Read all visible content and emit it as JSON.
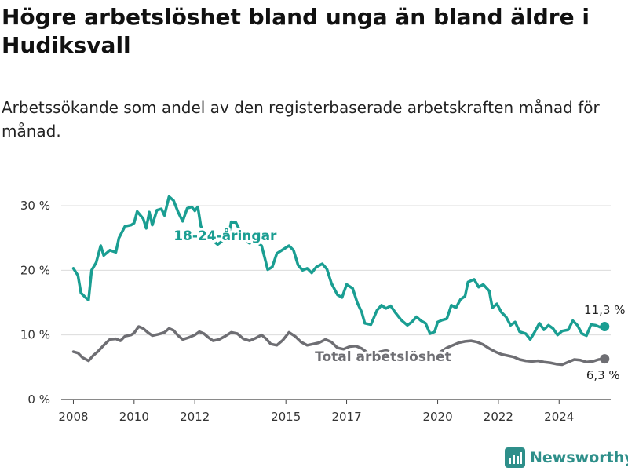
{
  "header": {
    "title": "Högre arbetslöshet bland unga än bland äldre i Hudiksvall",
    "subtitle": "Arbetssökande som andel av den registerbaserade arbetskraften månad för månad."
  },
  "brand": {
    "name": "Newsworthy",
    "color": "#2e8f8a",
    "icon": "bar-chart-logo-icon"
  },
  "chart_data": {
    "type": "line",
    "title": "Högre arbetslöshet bland unga än bland äldre i Hudiksvall",
    "subtitle": "Arbetssökande som andel av den registerbaserade arbetskraften månad för månad.",
    "x_range": [
      2007.6,
      2025.7
    ],
    "ylim": [
      0,
      30
    ],
    "y_ticks": [
      0,
      10,
      20,
      30
    ],
    "y_tick_labels": [
      "0 %",
      "10 %",
      "20 %",
      "30 %"
    ],
    "x_ticks": [
      2008,
      2010,
      2012,
      2015,
      2017,
      2020,
      2022,
      2024
    ],
    "x_tick_labels": [
      "2008",
      "2010",
      "2012",
      "2015",
      "2017",
      "2020",
      "2022",
      "2024"
    ],
    "grid": true,
    "legend": "inline",
    "series": [
      {
        "name": "18-24-åringar",
        "color": "#1a9e92",
        "end_label": "11,3 %",
        "points": [
          [
            2008.0,
            20.3
          ],
          [
            2008.15,
            19.2
          ],
          [
            2008.25,
            16.5
          ],
          [
            2008.4,
            15.8
          ],
          [
            2008.5,
            15.4
          ],
          [
            2008.6,
            20.0
          ],
          [
            2008.75,
            21.2
          ],
          [
            2008.9,
            23.8
          ],
          [
            2009.0,
            22.3
          ],
          [
            2009.2,
            23.1
          ],
          [
            2009.4,
            22.8
          ],
          [
            2009.5,
            25.0
          ],
          [
            2009.7,
            26.8
          ],
          [
            2009.9,
            27.0
          ],
          [
            2010.0,
            27.3
          ],
          [
            2010.1,
            29.1
          ],
          [
            2010.3,
            28.0
          ],
          [
            2010.4,
            26.5
          ],
          [
            2010.5,
            29.0
          ],
          [
            2010.6,
            27.0
          ],
          [
            2010.75,
            29.3
          ],
          [
            2010.9,
            29.5
          ],
          [
            2011.0,
            28.5
          ],
          [
            2011.15,
            31.4
          ],
          [
            2011.3,
            30.8
          ],
          [
            2011.45,
            29.0
          ],
          [
            2011.6,
            27.6
          ],
          [
            2011.75,
            29.6
          ],
          [
            2011.9,
            29.8
          ],
          [
            2012.0,
            29.2
          ],
          [
            2012.1,
            29.8
          ],
          [
            2012.2,
            26.8
          ],
          [
            2012.4,
            25.2
          ],
          [
            2012.6,
            24.6
          ],
          [
            2012.75,
            24.0
          ],
          [
            2012.9,
            24.5
          ],
          [
            2013.0,
            25.1
          ],
          [
            2013.1,
            25.0
          ],
          [
            2013.2,
            27.5
          ],
          [
            2013.35,
            27.4
          ],
          [
            2013.5,
            26.0
          ],
          [
            2013.6,
            24.8
          ],
          [
            2013.8,
            24.2
          ],
          [
            2014.0,
            24.5
          ],
          [
            2014.2,
            23.8
          ],
          [
            2014.3,
            22.0
          ],
          [
            2014.4,
            20.1
          ],
          [
            2014.55,
            20.5
          ],
          [
            2014.7,
            22.6
          ],
          [
            2014.9,
            23.2
          ],
          [
            2015.1,
            23.8
          ],
          [
            2015.25,
            23.1
          ],
          [
            2015.4,
            20.8
          ],
          [
            2015.55,
            20.0
          ],
          [
            2015.7,
            20.3
          ],
          [
            2015.85,
            19.6
          ],
          [
            2016.0,
            20.5
          ],
          [
            2016.2,
            21.0
          ],
          [
            2016.35,
            20.2
          ],
          [
            2016.5,
            18.0
          ],
          [
            2016.7,
            16.2
          ],
          [
            2016.85,
            15.8
          ],
          [
            2017.0,
            17.8
          ],
          [
            2017.2,
            17.2
          ],
          [
            2017.35,
            15.0
          ],
          [
            2017.5,
            13.5
          ],
          [
            2017.6,
            11.8
          ],
          [
            2017.8,
            11.6
          ],
          [
            2018.0,
            13.8
          ],
          [
            2018.15,
            14.6
          ],
          [
            2018.3,
            14.1
          ],
          [
            2018.45,
            14.5
          ],
          [
            2018.6,
            13.5
          ],
          [
            2018.8,
            12.3
          ],
          [
            2019.0,
            11.5
          ],
          [
            2019.15,
            12.0
          ],
          [
            2019.3,
            12.8
          ],
          [
            2019.45,
            12.2
          ],
          [
            2019.6,
            11.8
          ],
          [
            2019.75,
            10.2
          ],
          [
            2019.9,
            10.5
          ],
          [
            2020.0,
            12.0
          ],
          [
            2020.15,
            12.3
          ],
          [
            2020.3,
            12.5
          ],
          [
            2020.45,
            14.6
          ],
          [
            2020.6,
            14.2
          ],
          [
            2020.75,
            15.5
          ],
          [
            2020.9,
            16.0
          ],
          [
            2021.0,
            18.2
          ],
          [
            2021.2,
            18.6
          ],
          [
            2021.35,
            17.4
          ],
          [
            2021.5,
            17.8
          ],
          [
            2021.7,
            16.8
          ],
          [
            2021.8,
            14.2
          ],
          [
            2021.95,
            14.8
          ],
          [
            2022.1,
            13.5
          ],
          [
            2022.25,
            12.8
          ],
          [
            2022.4,
            11.5
          ],
          [
            2022.55,
            12.0
          ],
          [
            2022.7,
            10.5
          ],
          [
            2022.9,
            10.2
          ],
          [
            2023.05,
            9.3
          ],
          [
            2023.2,
            10.5
          ],
          [
            2023.35,
            11.8
          ],
          [
            2023.5,
            10.8
          ],
          [
            2023.65,
            11.5
          ],
          [
            2023.8,
            11.0
          ],
          [
            2023.95,
            10.0
          ],
          [
            2024.1,
            10.6
          ],
          [
            2024.3,
            10.8
          ],
          [
            2024.45,
            12.2
          ],
          [
            2024.6,
            11.5
          ],
          [
            2024.75,
            10.2
          ],
          [
            2024.9,
            9.9
          ],
          [
            2025.05,
            11.6
          ],
          [
            2025.2,
            11.5
          ],
          [
            2025.35,
            11.2
          ],
          [
            2025.5,
            11.3
          ]
        ]
      },
      {
        "name": "Total arbetslöshet",
        "color": "#6e6e73",
        "end_label": "6,3 %",
        "points": [
          [
            2008.0,
            7.4
          ],
          [
            2008.15,
            7.2
          ],
          [
            2008.3,
            6.5
          ],
          [
            2008.5,
            6.0
          ],
          [
            2008.65,
            6.8
          ],
          [
            2008.8,
            7.4
          ],
          [
            2009.0,
            8.4
          ],
          [
            2009.2,
            9.3
          ],
          [
            2009.4,
            9.4
          ],
          [
            2009.55,
            9.1
          ],
          [
            2009.7,
            9.8
          ],
          [
            2009.9,
            10.0
          ],
          [
            2010.0,
            10.3
          ],
          [
            2010.15,
            11.3
          ],
          [
            2010.3,
            11.0
          ],
          [
            2010.45,
            10.4
          ],
          [
            2010.6,
            9.9
          ],
          [
            2010.8,
            10.1
          ],
          [
            2011.0,
            10.4
          ],
          [
            2011.15,
            11.0
          ],
          [
            2011.3,
            10.7
          ],
          [
            2011.45,
            9.9
          ],
          [
            2011.6,
            9.3
          ],
          [
            2011.8,
            9.6
          ],
          [
            2012.0,
            10.0
          ],
          [
            2012.15,
            10.5
          ],
          [
            2012.3,
            10.2
          ],
          [
            2012.45,
            9.6
          ],
          [
            2012.6,
            9.1
          ],
          [
            2012.8,
            9.3
          ],
          [
            2013.0,
            9.8
          ],
          [
            2013.2,
            10.4
          ],
          [
            2013.4,
            10.2
          ],
          [
            2013.6,
            9.4
          ],
          [
            2013.8,
            9.1
          ],
          [
            2014.0,
            9.5
          ],
          [
            2014.2,
            10.0
          ],
          [
            2014.35,
            9.4
          ],
          [
            2014.5,
            8.6
          ],
          [
            2014.7,
            8.4
          ],
          [
            2014.9,
            9.2
          ],
          [
            2015.1,
            10.4
          ],
          [
            2015.3,
            9.8
          ],
          [
            2015.5,
            8.9
          ],
          [
            2015.7,
            8.4
          ],
          [
            2015.9,
            8.6
          ],
          [
            2016.1,
            8.8
          ],
          [
            2016.3,
            9.3
          ],
          [
            2016.5,
            8.9
          ],
          [
            2016.7,
            8.0
          ],
          [
            2016.9,
            7.8
          ],
          [
            2017.1,
            8.2
          ],
          [
            2017.3,
            8.3
          ],
          [
            2017.5,
            7.9
          ],
          [
            2017.7,
            7.2
          ],
          [
            2017.9,
            7.0
          ],
          [
            2018.1,
            7.4
          ],
          [
            2018.3,
            7.6
          ],
          [
            2018.5,
            7.3
          ],
          [
            2018.7,
            6.9
          ],
          [
            2018.9,
            6.6
          ],
          [
            2019.1,
            6.9
          ],
          [
            2019.3,
            7.2
          ],
          [
            2019.5,
            6.9
          ],
          [
            2019.7,
            6.6
          ],
          [
            2019.9,
            6.5
          ],
          [
            2020.1,
            7.4
          ],
          [
            2020.3,
            8.0
          ],
          [
            2020.5,
            8.4
          ],
          [
            2020.7,
            8.8
          ],
          [
            2020.9,
            9.0
          ],
          [
            2021.1,
            9.1
          ],
          [
            2021.3,
            8.9
          ],
          [
            2021.5,
            8.5
          ],
          [
            2021.7,
            7.9
          ],
          [
            2021.9,
            7.4
          ],
          [
            2022.1,
            7.0
          ],
          [
            2022.3,
            6.8
          ],
          [
            2022.5,
            6.6
          ],
          [
            2022.7,
            6.2
          ],
          [
            2022.9,
            6.0
          ],
          [
            2023.1,
            5.9
          ],
          [
            2023.3,
            6.0
          ],
          [
            2023.5,
            5.8
          ],
          [
            2023.7,
            5.7
          ],
          [
            2023.9,
            5.5
          ],
          [
            2024.1,
            5.4
          ],
          [
            2024.3,
            5.8
          ],
          [
            2024.5,
            6.2
          ],
          [
            2024.7,
            6.1
          ],
          [
            2024.9,
            5.8
          ],
          [
            2025.1,
            5.9
          ],
          [
            2025.3,
            6.2
          ],
          [
            2025.5,
            6.3
          ]
        ]
      }
    ]
  }
}
